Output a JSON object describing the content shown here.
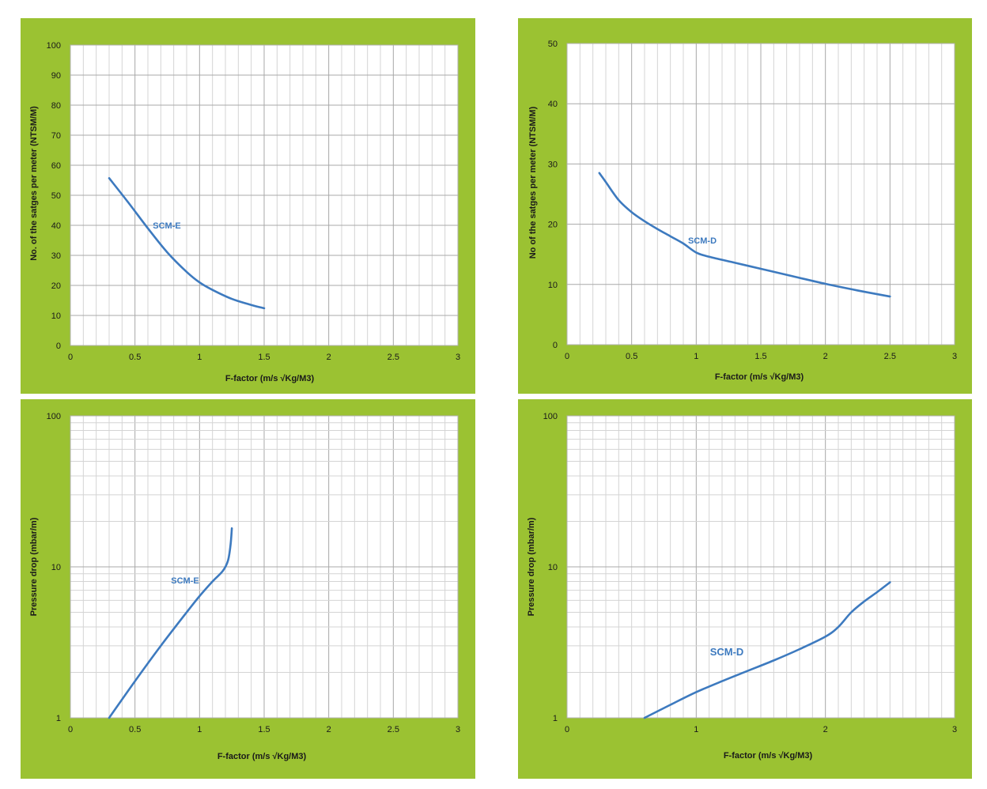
{
  "chart_data": [
    {
      "type": "line",
      "xlabel": "F-factor (m/s √Kg/M3)",
      "ylabel": "No. of the satges per meter  (NTSM/M)",
      "xlim": [
        0,
        3
      ],
      "ylim": [
        0,
        100
      ],
      "yscale": "linear",
      "xticks": [
        "0",
        "0.5",
        "1",
        "1.5",
        "2",
        "2.5",
        "3"
      ],
      "yticks": [
        "0",
        "10",
        "20",
        "30",
        "40",
        "50",
        "60",
        "70",
        "80",
        "90",
        "100"
      ],
      "grid": true,
      "series_label": "SCM-E",
      "series": [
        {
          "x": [
            0.3,
            0.45,
            0.6,
            0.75,
            0.9,
            1.0,
            1.1,
            1.25,
            1.4,
            1.5
          ],
          "y": [
            55.7,
            47.5,
            39.0,
            31.0,
            24.5,
            21.0,
            18.5,
            15.5,
            13.5,
            12.4
          ]
        }
      ]
    },
    {
      "type": "line",
      "xlabel": "F-factor (m/s √Kg/M3)",
      "ylabel": "No of the satges per meter  (NTSM/M)",
      "xlim": [
        0,
        3
      ],
      "ylim": [
        0,
        50
      ],
      "yscale": "linear",
      "xticks": [
        "0",
        "0.5",
        "1",
        "1.5",
        "2",
        "2.5",
        "3"
      ],
      "yticks": [
        "0",
        "10",
        "20",
        "30",
        "40",
        "50"
      ],
      "grid": true,
      "series_label": "SCM-D",
      "series": [
        {
          "x": [
            0.25,
            0.3,
            0.4,
            0.5,
            0.6,
            0.7,
            0.8,
            0.9,
            1.0,
            1.1,
            1.3,
            1.5,
            1.7,
            2.0,
            2.25,
            2.5
          ],
          "y": [
            28.5,
            27.0,
            24.0,
            22.0,
            20.5,
            19.2,
            18.0,
            16.8,
            15.3,
            14.6,
            13.6,
            12.6,
            11.6,
            10.1,
            9.0,
            8.0
          ]
        }
      ]
    },
    {
      "type": "line",
      "xlabel": "F-factor (m/s √Kg/M3)",
      "ylabel": "Pressure drop (mbar/m)",
      "xlim": [
        0,
        3
      ],
      "ylim": [
        1,
        100
      ],
      "yscale": "log",
      "xticks": [
        "0",
        "0.5",
        "1",
        "1.5",
        "2",
        "2.5",
        "3"
      ],
      "yticks": [
        "1",
        "10",
        "100"
      ],
      "grid": true,
      "series_label": "SCM-E",
      "series": [
        {
          "x": [
            0.3,
            0.5,
            0.7,
            0.9,
            1.0,
            1.1,
            1.18,
            1.22,
            1.24,
            1.25
          ],
          "y": [
            1.0,
            1.75,
            3.0,
            5.0,
            6.4,
            8.0,
            9.4,
            11.0,
            14.0,
            18.0
          ]
        }
      ]
    },
    {
      "type": "line",
      "xlabel": "F-factor (m/s √Kg/M3)",
      "ylabel": "Pressure drop (mbar/m)",
      "xlim": [
        0,
        3
      ],
      "ylim": [
        1,
        100
      ],
      "yscale": "log",
      "xticks": [
        "0",
        "1",
        "2",
        "3"
      ],
      "yticks": [
        "1",
        "10",
        "100"
      ],
      "grid": true,
      "series_label": "SCM-D",
      "series": [
        {
          "x": [
            0.6,
            0.8,
            1.0,
            1.2,
            1.4,
            1.6,
            1.8,
            2.0,
            2.1,
            2.2,
            2.3,
            2.4,
            2.5
          ],
          "y": [
            1.0,
            1.22,
            1.48,
            1.75,
            2.05,
            2.4,
            2.85,
            3.45,
            4.0,
            5.0,
            5.9,
            6.8,
            7.9
          ]
        }
      ]
    }
  ]
}
